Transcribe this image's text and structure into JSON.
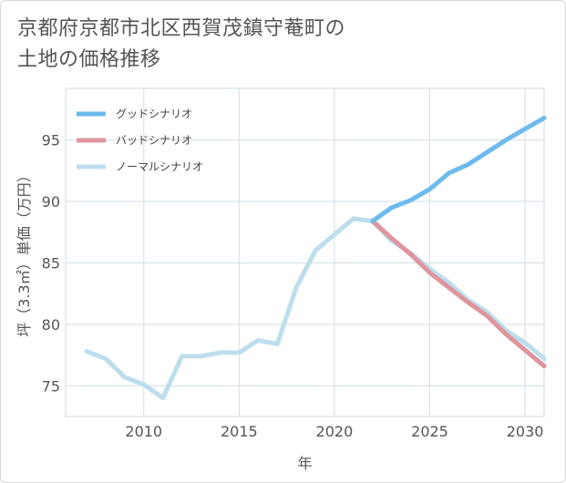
{
  "title_line1": "京都府京都市北区西賀茂鎮守菴町の",
  "title_line2": "土地の価格推移",
  "chart_data": {
    "type": "line",
    "xlabel": "年",
    "ylabel": "坪（3.3㎡）単価（万円）",
    "xlim": [
      2005.9,
      2031
    ],
    "ylim": [
      72.5,
      99.2
    ],
    "xticks": [
      2010,
      2015,
      2020,
      2025,
      2030
    ],
    "yticks": [
      75,
      80,
      85,
      90,
      95
    ],
    "grid": true,
    "legend_position": "top-left",
    "series": [
      {
        "name": "グッドシナリオ",
        "color": "#6dbbee",
        "x": [
          2022,
          2023,
          2024,
          2025,
          2026,
          2027,
          2028,
          2029,
          2030,
          2031
        ],
        "y": [
          88.4,
          89.5,
          90.1,
          91.0,
          92.3,
          93.0,
          94.0,
          95.0,
          95.9,
          96.8
        ]
      },
      {
        "name": "バッドシナリオ",
        "color": "#e0959e",
        "x": [
          2022,
          2023,
          2024,
          2025,
          2026,
          2027,
          2028,
          2029,
          2030,
          2031
        ],
        "y": [
          88.4,
          87.0,
          85.7,
          84.2,
          83.0,
          81.8,
          80.7,
          79.2,
          77.9,
          76.6
        ]
      },
      {
        "name": "ノーマルシナリオ",
        "color": "#bcdeed",
        "x": [
          2007,
          2008,
          2009,
          2010,
          2011,
          2012,
          2013,
          2014,
          2015,
          2016,
          2017,
          2018,
          2019,
          2020,
          2021,
          2022,
          2023,
          2024,
          2025,
          2026,
          2027,
          2028,
          2029,
          2030,
          2031
        ],
        "y": [
          77.8,
          77.2,
          75.7,
          75.1,
          74.0,
          77.4,
          77.4,
          77.7,
          77.7,
          78.7,
          78.4,
          83.0,
          86.0,
          87.3,
          88.6,
          88.4,
          86.8,
          85.8,
          84.5,
          83.4,
          82.0,
          81.0,
          79.5,
          78.5,
          77.2
        ]
      }
    ]
  }
}
